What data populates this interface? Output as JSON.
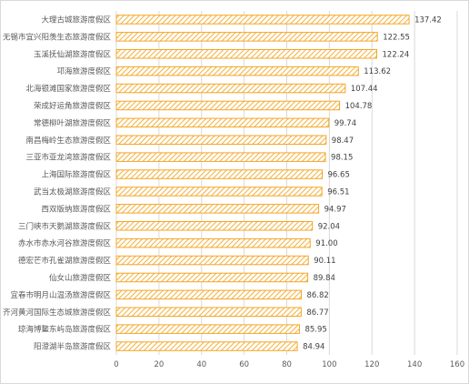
{
  "chart_data": {
    "type": "bar",
    "orientation": "horizontal",
    "title": "",
    "xlabel": "",
    "ylabel": "",
    "xlim": [
      0,
      160
    ],
    "xticks": [
      0,
      20,
      40,
      60,
      80,
      100,
      120,
      140,
      160
    ],
    "grid": "vertical",
    "legend": "none",
    "bar_fill": "#ffffff",
    "bar_hatch_color": "#f5a623",
    "gridline_color": "#d9d9d9",
    "categories": [
      "大理古城旅游度假区",
      "无锡市宜兴阳羡生态旅游度假区",
      "玉溪抚仙湖旅游度假区",
      "邛海旅游度假区",
      "北海银滩国家旅游度假区",
      "荣成好运角旅游度假区",
      "常德柳叶湖旅游度假区",
      "南昌梅岭生态旅游度假区",
      "三亚市亚龙湾旅游度假区",
      "上海国际旅游度假区",
      "武当太极湖旅游度假区",
      "西双版纳旅游度假区",
      "三门峡市天鹅湖旅游度假区",
      "赤水市赤水河谷旅游度假区",
      "德宏芒市孔雀湖旅游度假区",
      "仙女山旅游度假区",
      "宜春市明月山温汤旅游度假区",
      "齐河黄河国际生态城旅游度假区",
      "琼海博鳌东屿岛旅游度假区",
      "阳澄湖半岛旅游度假区"
    ],
    "values": [
      137.42,
      122.55,
      122.24,
      113.62,
      107.44,
      104.78,
      99.74,
      98.47,
      98.15,
      96.65,
      96.51,
      94.97,
      92.04,
      91.0,
      90.11,
      89.84,
      86.82,
      86.77,
      85.95,
      84.94
    ],
    "value_labels": [
      "137.42",
      "122.55",
      "122.24",
      "113.62",
      "107.44",
      "104.78",
      "99.74",
      "98.47",
      "98.15",
      "96.65",
      "96.51",
      "94.97",
      "92.04",
      "91.00",
      "90.11",
      "89.84",
      "86.82",
      "86.77",
      "85.95",
      "84.94"
    ]
  }
}
